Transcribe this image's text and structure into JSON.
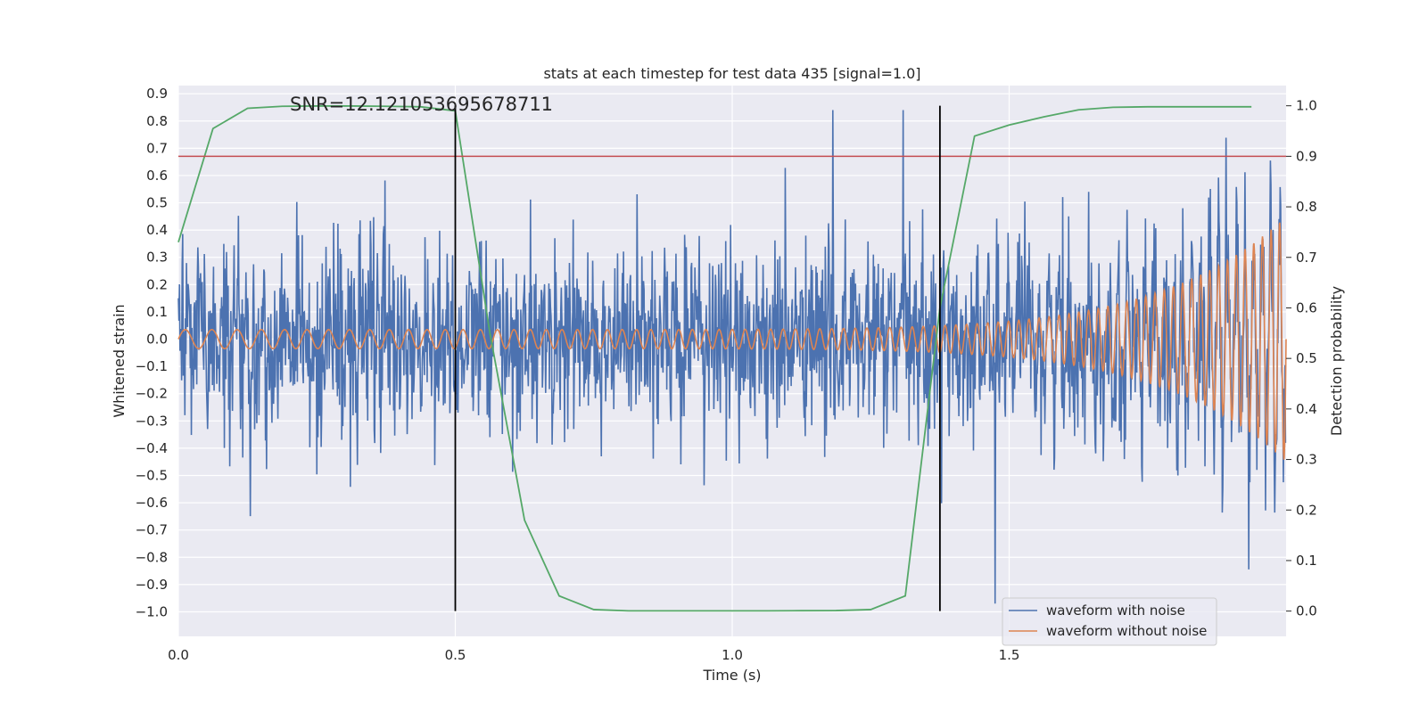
{
  "chart_data": {
    "type": "line",
    "title": "stats at each timestep for test data 435 [signal=1.0]",
    "annotation": "SNR=12.121053695678711",
    "xlabel": "Time (s)",
    "ylabel_left": "Whitened strain",
    "ylabel_right": "Detection probability",
    "xlim": [
      0.0,
      2.0
    ],
    "ylim_left": [
      -1.09,
      0.93
    ],
    "ylim_right": [
      -0.05,
      1.04
    ],
    "x_ticks": [
      "0.0",
      "0.5",
      "1.0",
      "1.5"
    ],
    "y_ticks_left": [
      "0.9",
      "0.8",
      "0.7",
      "0.6",
      "0.5",
      "0.4",
      "0.3",
      "0.2",
      "0.1",
      "0.0",
      "−0.1",
      "−0.2",
      "−0.3",
      "−0.4",
      "−0.5",
      "−0.6",
      "−0.7",
      "−0.8",
      "−0.9",
      "−1.0"
    ],
    "y_ticks_right": [
      "1.0",
      "0.9",
      "0.8",
      "0.7",
      "0.6",
      "0.5",
      "0.4",
      "0.3",
      "0.2",
      "0.1",
      "0.0"
    ],
    "grid": true,
    "legend_position": "bottom-right",
    "threshold": {
      "value": 0.9,
      "axis": "right",
      "color": "#c44e52"
    },
    "vertical_markers": [
      0.5,
      1.375
    ],
    "marker_color": "#000000",
    "series": [
      {
        "name": "waveform with noise",
        "axis": "left",
        "color": "#4c72b0",
        "kind": "noise",
        "amplitude": 0.28,
        "peak": 0.84,
        "trough": -0.97
      },
      {
        "name": "waveform without noise",
        "axis": "left",
        "color": "#dd8452",
        "kind": "chirp",
        "start_freq_hz": 20,
        "end_freq_hz": 65,
        "start_amplitude": 0.035,
        "end_amplitude": 0.45
      },
      {
        "axis": "right",
        "color": "#55a868",
        "kind": "probability",
        "x": [
          0.0,
          0.0625,
          0.125,
          0.1875,
          0.25,
          0.3125,
          0.375,
          0.4375,
          0.5,
          0.5625,
          0.625,
          0.6875,
          0.75,
          0.8125,
          0.875,
          0.9375,
          1.0,
          1.0625,
          1.125,
          1.1875,
          1.25,
          1.3125,
          1.375,
          1.4375,
          1.5,
          1.5625,
          1.625,
          1.6875,
          1.75,
          1.8125,
          1.875,
          1.9375
        ],
        "y": [
          0.73,
          0.955,
          0.995,
          0.999,
          0.9995,
          0.9995,
          0.999,
          0.998,
          0.99,
          0.55,
          0.18,
          0.03,
          0.003,
          0.0005,
          0.0005,
          0.0005,
          0.0005,
          0.0005,
          0.0008,
          0.001,
          0.003,
          0.03,
          0.6,
          0.94,
          0.962,
          0.978,
          0.992,
          0.997,
          0.998,
          0.998,
          0.998,
          0.998
        ]
      }
    ]
  }
}
